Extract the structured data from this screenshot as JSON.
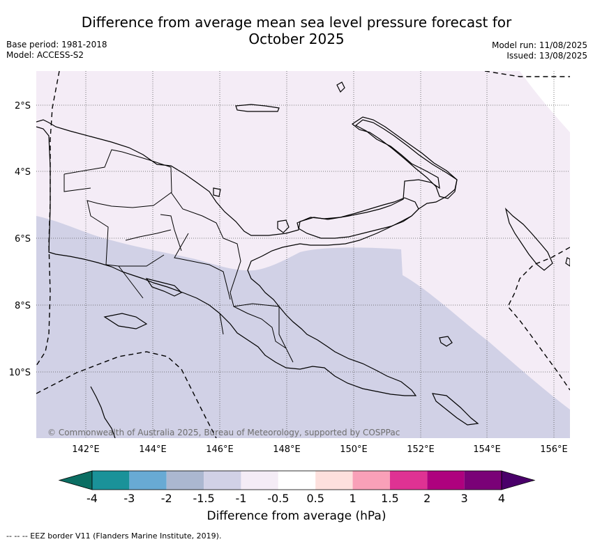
{
  "title_line1": "Difference from average mean sea level pressure forecast for",
  "title_line2": "October 2025",
  "base_period": "Base period: 1981-2018",
  "model": "Model: ACCESS-S2",
  "model_run": "Model run: 11/08/2025",
  "issued": "Issued: 13/08/2025",
  "copyright": "© Commonwealth of Australia 2025, Bureau of Meteorology, supported by COSPPac",
  "lat_labels": [
    "2°S",
    "4°S",
    "6°S",
    "8°S",
    "10°S"
  ],
  "lon_labels": [
    "142°E",
    "144°E",
    "146°E",
    "148°E",
    "150°E",
    "152°E",
    "154°E",
    "156°E"
  ],
  "colorbar": {
    "title": "Difference from average (hPa)",
    "labels": [
      "-4",
      "-3",
      "-2",
      "-1.5",
      "-1",
      "-0.5",
      "0.5",
      "1",
      "1.5",
      "2",
      "3",
      "4"
    ],
    "colors": [
      "#0b6e63",
      "#1a9299",
      "#68aad4",
      "#abb7d0",
      "#d1d1e6",
      "#f4ecf6",
      "#ffffff",
      "#fde0dd",
      "#f9a0b8",
      "#df3293",
      "#ae017e",
      "#7a0177",
      "#4a006a"
    ]
  },
  "eez_legend": "-- -- -- EEZ border V11 (Flanders Marine Institute, 2019).",
  "map_colors": {
    "light_band": "#f4ecf6",
    "dark_band": "#d1d1e6"
  }
}
